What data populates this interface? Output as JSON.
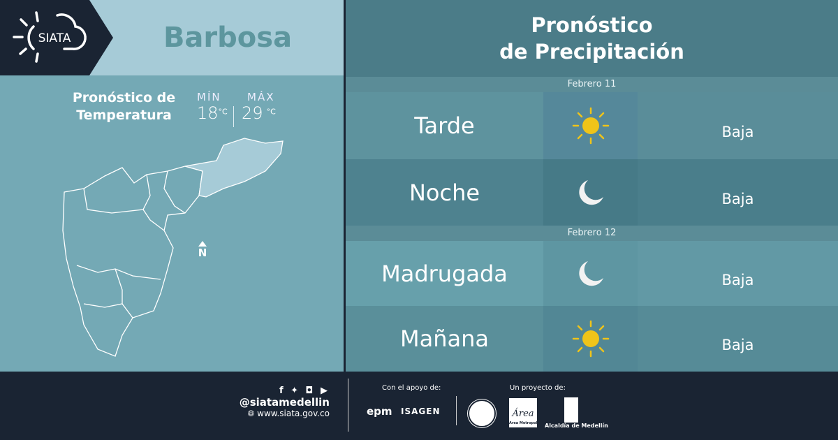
{
  "header": {
    "logo_text": "SIATA",
    "city": "Barbosa",
    "title_line1": "Pronóstico",
    "title_line2": "de Precipitación"
  },
  "temperature": {
    "title_line1": "Pronóstico de",
    "title_line2": "Temperatura",
    "min_label": "MÍN",
    "min_value": "18",
    "max_label": "MÁX",
    "max_value": "29",
    "unit": "°C"
  },
  "map": {
    "north_label": "N"
  },
  "forecast": [
    {
      "date": "Febrero 11",
      "periods": [
        {
          "label": "Tarde",
          "icon": "sun-icon",
          "value": "Baja"
        },
        {
          "label": "Noche",
          "icon": "moon-icon",
          "value": "Baja"
        }
      ]
    },
    {
      "date": "Febrero 12",
      "periods": [
        {
          "label": "Madrugada",
          "icon": "moon-icon",
          "value": "Baja"
        },
        {
          "label": "Mañana",
          "icon": "sun-icon",
          "value": "Baja"
        }
      ]
    }
  ],
  "footer": {
    "handle": "@siatamedellin",
    "website": "www.siata.gov.co",
    "support_label": "Con el apoyo de:",
    "support_logos": [
      "epm",
      "ISAGEN"
    ],
    "project_label": "Un proyecto de:",
    "project_logos": [
      "Área Metropolitana",
      "Alcaldía de Medellín"
    ]
  },
  "colors": {
    "dark": "#1a2433",
    "sun": "#f0c419",
    "accent_text": "#5d969e"
  }
}
